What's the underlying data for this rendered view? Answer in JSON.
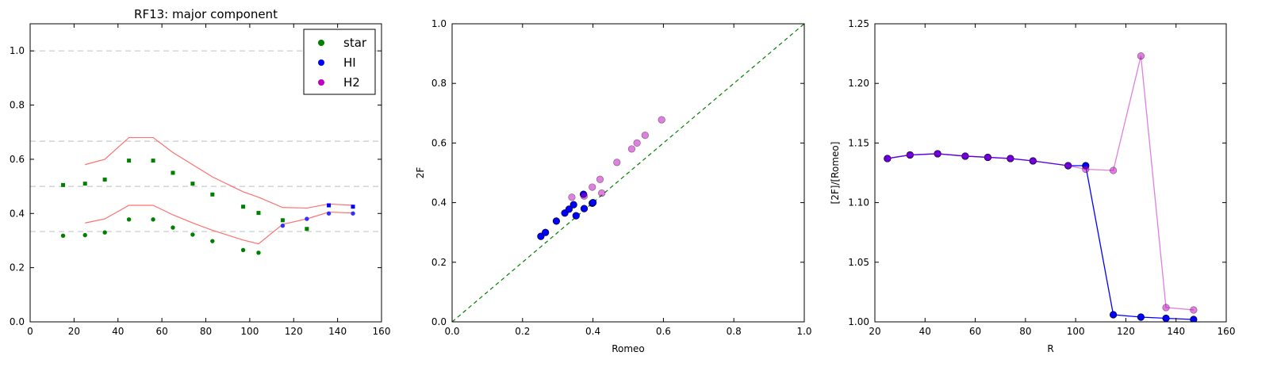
{
  "chart_data": [
    {
      "type": "scatter",
      "title": "RF13: major component",
      "xlabel": "",
      "ylabel": "",
      "xlim": [
        0,
        160
      ],
      "ylim": [
        0.0,
        1.1
      ],
      "xticks": [
        "0",
        "20",
        "40",
        "60",
        "80",
        "100",
        "120",
        "140",
        "160"
      ],
      "yticks": [
        "0.0",
        "0.2",
        "0.4",
        "0.6",
        "0.8",
        "1.0"
      ],
      "reference_lines_y": [
        1.0,
        0.6667,
        0.5,
        0.3333
      ],
      "legend": {
        "position": "top-right",
        "entries": [
          {
            "label": "star",
            "color": "#008000"
          },
          {
            "label": "HI",
            "color": "#0000ff"
          },
          {
            "label": "H2",
            "color": "#bf00bf"
          }
        ]
      },
      "series": [
        {
          "marker": "square",
          "color": "#008000",
          "points": [
            [
              15,
              0.505
            ],
            [
              25,
              0.51
            ],
            [
              34,
              0.525
            ],
            [
              45,
              0.595
            ],
            [
              56,
              0.595
            ],
            [
              65,
              0.55
            ],
            [
              74,
              0.51
            ],
            [
              83,
              0.47
            ],
            [
              97,
              0.425
            ],
            [
              104,
              0.402
            ],
            [
              115,
              0.375
            ],
            [
              126,
              0.343
            ]
          ]
        },
        {
          "marker": "circle",
          "color": "#008000",
          "points": [
            [
              15,
              0.318
            ],
            [
              25,
              0.32
            ],
            [
              34,
              0.33
            ],
            [
              45,
              0.378
            ],
            [
              56,
              0.378
            ],
            [
              65,
              0.348
            ],
            [
              74,
              0.322
            ],
            [
              83,
              0.298
            ],
            [
              97,
              0.265
            ],
            [
              104,
              0.255
            ]
          ]
        },
        {
          "marker": "square",
          "color": "#0000ff",
          "points": [
            [
              136,
              0.43
            ],
            [
              147,
              0.425
            ]
          ]
        },
        {
          "marker": "circle",
          "color": "#3030ff",
          "points": [
            [
              115,
              0.355
            ],
            [
              126,
              0.38
            ],
            [
              136,
              0.4
            ],
            [
              147,
              0.4
            ]
          ]
        }
      ],
      "envelope_color": "#ff7070",
      "envelope_upper": [
        [
          25,
          0.58
        ],
        [
          34,
          0.6
        ],
        [
          45,
          0.68
        ],
        [
          56,
          0.68
        ],
        [
          65,
          0.625
        ],
        [
          74,
          0.58
        ],
        [
          83,
          0.535
        ],
        [
          97,
          0.48
        ],
        [
          104,
          0.46
        ],
        [
          115,
          0.422
        ],
        [
          126,
          0.42
        ],
        [
          136,
          0.435
        ],
        [
          147,
          0.43
        ]
      ],
      "envelope_lower": [
        [
          25,
          0.365
        ],
        [
          34,
          0.38
        ],
        [
          45,
          0.43
        ],
        [
          56,
          0.43
        ],
        [
          65,
          0.395
        ],
        [
          74,
          0.365
        ],
        [
          83,
          0.338
        ],
        [
          97,
          0.302
        ],
        [
          104,
          0.288
        ],
        [
          115,
          0.36
        ],
        [
          126,
          0.38
        ],
        [
          136,
          0.405
        ],
        [
          147,
          0.402
        ]
      ]
    },
    {
      "type": "scatter",
      "title": "",
      "xlabel": "Romeo",
      "ylabel": "2F",
      "xlim": [
        0.0,
        1.0
      ],
      "ylim": [
        0.0,
        1.0
      ],
      "xticks": [
        "0.0",
        "0.2",
        "0.4",
        "0.6",
        "0.8",
        "1.0"
      ],
      "yticks": [
        "0.0",
        "0.2",
        "0.4",
        "0.6",
        "0.8",
        "1.0"
      ],
      "diagonal": {
        "from": [
          0,
          0
        ],
        "to": [
          1,
          1
        ],
        "color": "#008000",
        "style": "dashed"
      },
      "series": [
        {
          "color": "#0000ff",
          "alpha": 1.0,
          "points": [
            [
              0.252,
              0.287
            ],
            [
              0.265,
              0.3
            ],
            [
              0.296,
              0.338
            ],
            [
              0.32,
              0.365
            ],
            [
              0.332,
              0.378
            ],
            [
              0.345,
              0.393
            ],
            [
              0.352,
              0.356
            ],
            [
              0.373,
              0.428
            ],
            [
              0.375,
              0.38
            ],
            [
              0.398,
              0.398
            ],
            [
              0.4,
              0.4
            ]
          ]
        },
        {
          "color": "#bf00bf",
          "alpha": 0.5,
          "points": [
            [
              0.34,
              0.418
            ],
            [
              0.375,
              0.422
            ],
            [
              0.398,
              0.452
            ],
            [
              0.42,
              0.478
            ],
            [
              0.425,
              0.432
            ],
            [
              0.468,
              0.535
            ],
            [
              0.51,
              0.58
            ],
            [
              0.525,
              0.6
            ],
            [
              0.548,
              0.626
            ],
            [
              0.595,
              0.678
            ]
          ]
        }
      ]
    },
    {
      "type": "line",
      "title": "",
      "xlabel": "R",
      "ylabel": "[2F]/[Romeo]",
      "xlim": [
        20,
        160
      ],
      "ylim": [
        1.0,
        1.25
      ],
      "xticks": [
        "20",
        "40",
        "60",
        "80",
        "100",
        "120",
        "140",
        "160"
      ],
      "yticks": [
        "1.00",
        "1.05",
        "1.10",
        "1.15",
        "1.20",
        "1.25"
      ],
      "series": [
        {
          "color": "#0000ff",
          "alpha": 1.0,
          "points": [
            [
              25,
              1.137
            ],
            [
              34,
              1.14
            ],
            [
              45,
              1.141
            ],
            [
              56,
              1.139
            ],
            [
              65,
              1.138
            ],
            [
              74,
              1.137
            ],
            [
              83,
              1.135
            ],
            [
              97,
              1.131
            ],
            [
              104,
              1.131
            ],
            [
              115,
              1.006
            ],
            [
              126,
              1.004
            ],
            [
              136,
              1.003
            ],
            [
              147,
              1.002
            ]
          ]
        },
        {
          "color": "#bf00bf",
          "alpha": 0.5,
          "points": [
            [
              25,
              1.137
            ],
            [
              34,
              1.14
            ],
            [
              45,
              1.141
            ],
            [
              56,
              1.139
            ],
            [
              65,
              1.138
            ],
            [
              74,
              1.137
            ],
            [
              83,
              1.135
            ],
            [
              97,
              1.131
            ],
            [
              104,
              1.128
            ],
            [
              115,
              1.127
            ],
            [
              126,
              1.223
            ],
            [
              136,
              1.012
            ],
            [
              147,
              1.01
            ]
          ]
        }
      ]
    }
  ]
}
